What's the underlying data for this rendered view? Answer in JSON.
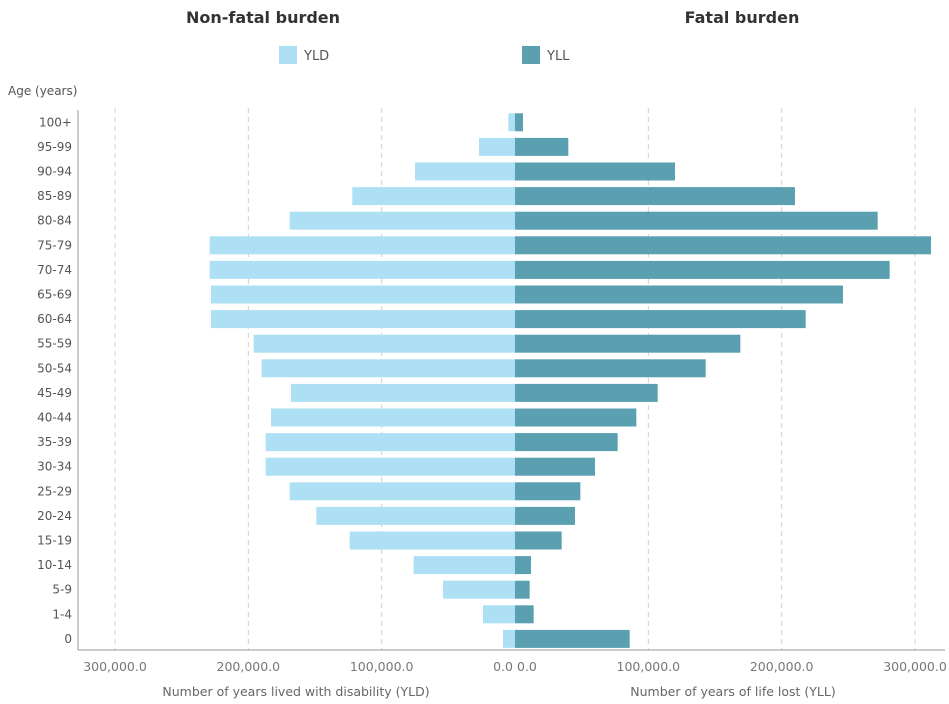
{
  "chart_data": {
    "type": "bar",
    "orientation": "horizontal",
    "layout": "population-pyramid",
    "panels": {
      "left_title": "Non-fatal burden",
      "right_title": "Fatal burden"
    },
    "age_axis_title": "Age (years)",
    "categories": [
      "100+",
      "95-99",
      "90-94",
      "85-89",
      "80-84",
      "75-79",
      "70-74",
      "65-69",
      "60-64",
      "55-59",
      "50-54",
      "45-49",
      "40-44",
      "35-39",
      "30-34",
      "25-29",
      "20-24",
      "15-19",
      "10-14",
      "5-9",
      "1-4",
      "0"
    ],
    "series": [
      {
        "name": "YLD",
        "color": "#aee0f5",
        "side": "left",
        "values": [
          5000,
          27000,
          75000,
          122000,
          169000,
          229000,
          229000,
          228000,
          228000,
          196000,
          190000,
          168000,
          183000,
          187000,
          187000,
          169000,
          149000,
          124000,
          76000,
          54000,
          24000,
          9000
        ]
      },
      {
        "name": "YLL",
        "color": "#5aa0b1",
        "side": "right",
        "values": [
          6000,
          40000,
          120000,
          210000,
          272000,
          312000,
          281000,
          246000,
          218000,
          169000,
          143000,
          107000,
          91000,
          77000,
          60000,
          49000,
          45000,
          35000,
          12000,
          11000,
          14000,
          86000
        ]
      }
    ],
    "left_axis": {
      "title": "Number of years lived with disability (YLD)",
      "range": [
        300000,
        0
      ],
      "ticks": [
        "300,000.0",
        "200,000.0",
        "100,000.0",
        "0.0"
      ]
    },
    "right_axis": {
      "title": "Number of years of life lost (YLL)",
      "range": [
        0,
        300000
      ],
      "ticks": [
        "0.0",
        "100,000.0",
        "200,000.0",
        "300,000.0"
      ]
    },
    "grid": true,
    "legend_position": "top"
  }
}
